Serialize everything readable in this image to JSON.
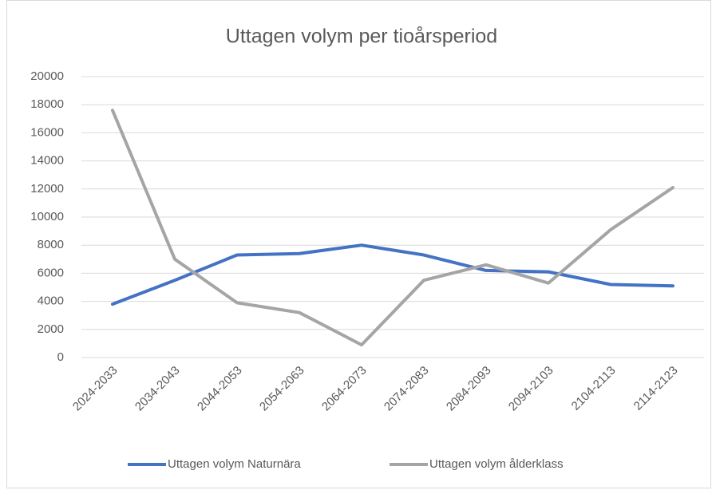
{
  "chart_data": {
    "type": "line",
    "title": "Uttagen volym per tioårsperiod",
    "categories": [
      "2024-2033",
      "2034-2043",
      "2044-2053",
      "2054-2063",
      "2064-2073",
      "2074-2083",
      "2084-2093",
      "2094-2103",
      "2104-2113",
      "2114-2123"
    ],
    "series": [
      {
        "name": "Uttagen volym Naturnära",
        "color": "#4472c4",
        "values": [
          3800,
          5500,
          7300,
          7400,
          8000,
          7300,
          6200,
          6100,
          5200,
          5100
        ]
      },
      {
        "name": "Uttagen volym ålderklass",
        "color": "#a5a5a5",
        "values": [
          17600,
          7000,
          3900,
          3200,
          900,
          5500,
          6600,
          5300,
          9100,
          12100
        ]
      }
    ],
    "ylim": [
      0,
      20000
    ],
    "yticks": [
      0,
      2000,
      4000,
      6000,
      8000,
      10000,
      12000,
      14000,
      16000,
      18000,
      20000
    ],
    "grid": true,
    "legend": "bottom"
  }
}
